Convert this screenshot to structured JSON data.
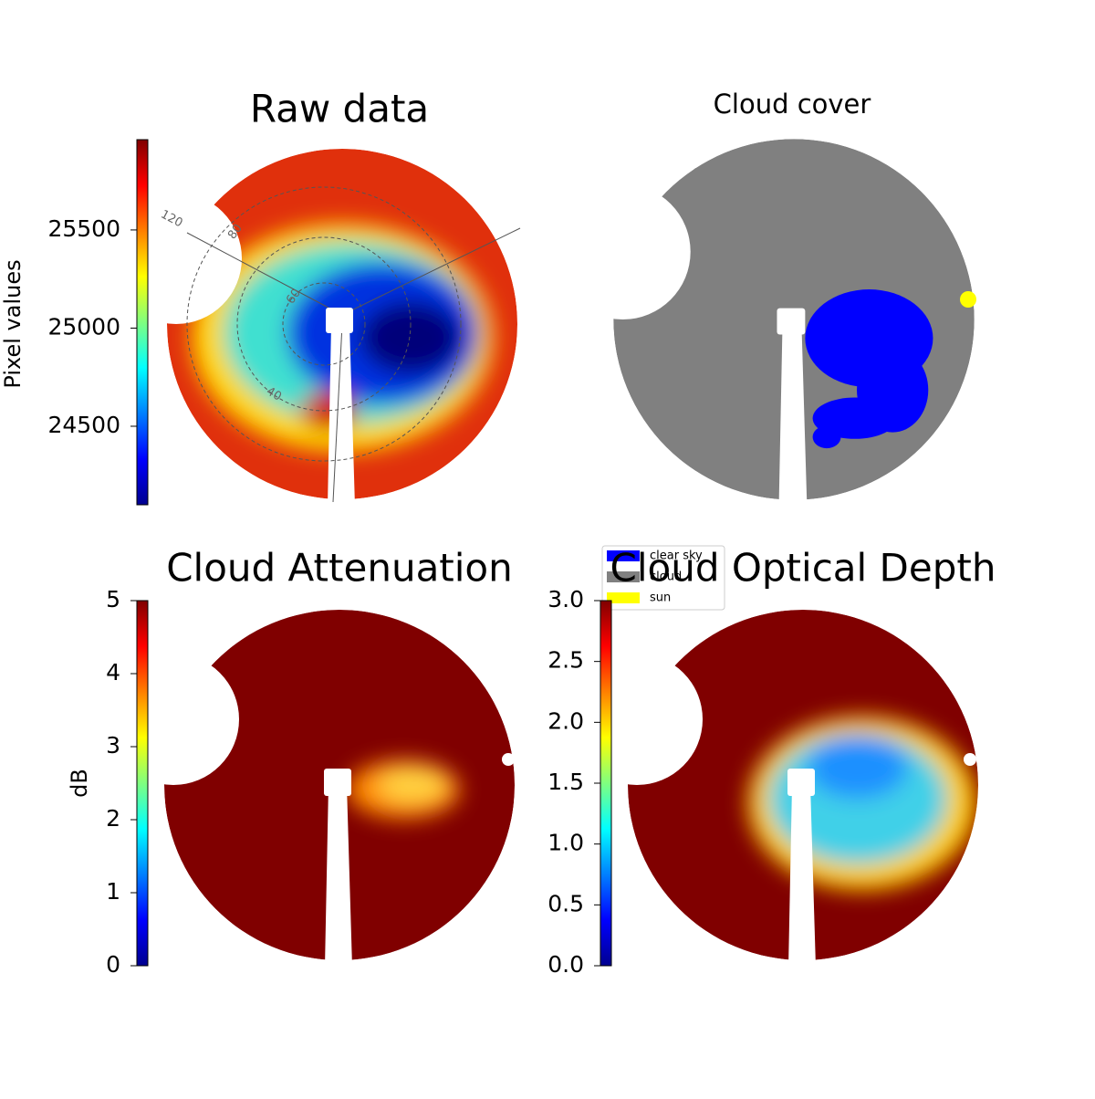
{
  "chart_data": [
    {
      "type": "heatmap",
      "title": "Raw data",
      "colorbar_label": "Pixel values",
      "ylim": [
        24100,
        25960
      ],
      "yticks": [
        24500,
        25000,
        25500
      ],
      "annotations": [
        "120",
        "80",
        "60",
        "40"
      ]
    },
    {
      "type": "classification",
      "title": "Cloud cover",
      "legend": [
        {
          "name": "clear sky",
          "color": "#0000ff"
        },
        {
          "name": "cloud",
          "color": "#808080"
        },
        {
          "name": "sun",
          "color": "#ffff00"
        }
      ]
    },
    {
      "type": "heatmap",
      "title": "Cloud Attenuation",
      "colorbar_label": "dB",
      "ylim": [
        0,
        5
      ],
      "yticks": [
        0,
        1,
        2,
        3,
        4,
        5
      ]
    },
    {
      "type": "heatmap",
      "title": "Cloud Optical Depth",
      "ylim": [
        0,
        3
      ],
      "yticks": [
        {
          "value": 0,
          "label": "0.0"
        },
        0.5,
        {
          "value": 1,
          "label": "1.0"
        },
        1.5,
        {
          "value": 2,
          "label": "2.0"
        },
        2.5,
        {
          "value": 3,
          "label": "3.0"
        }
      ]
    }
  ]
}
